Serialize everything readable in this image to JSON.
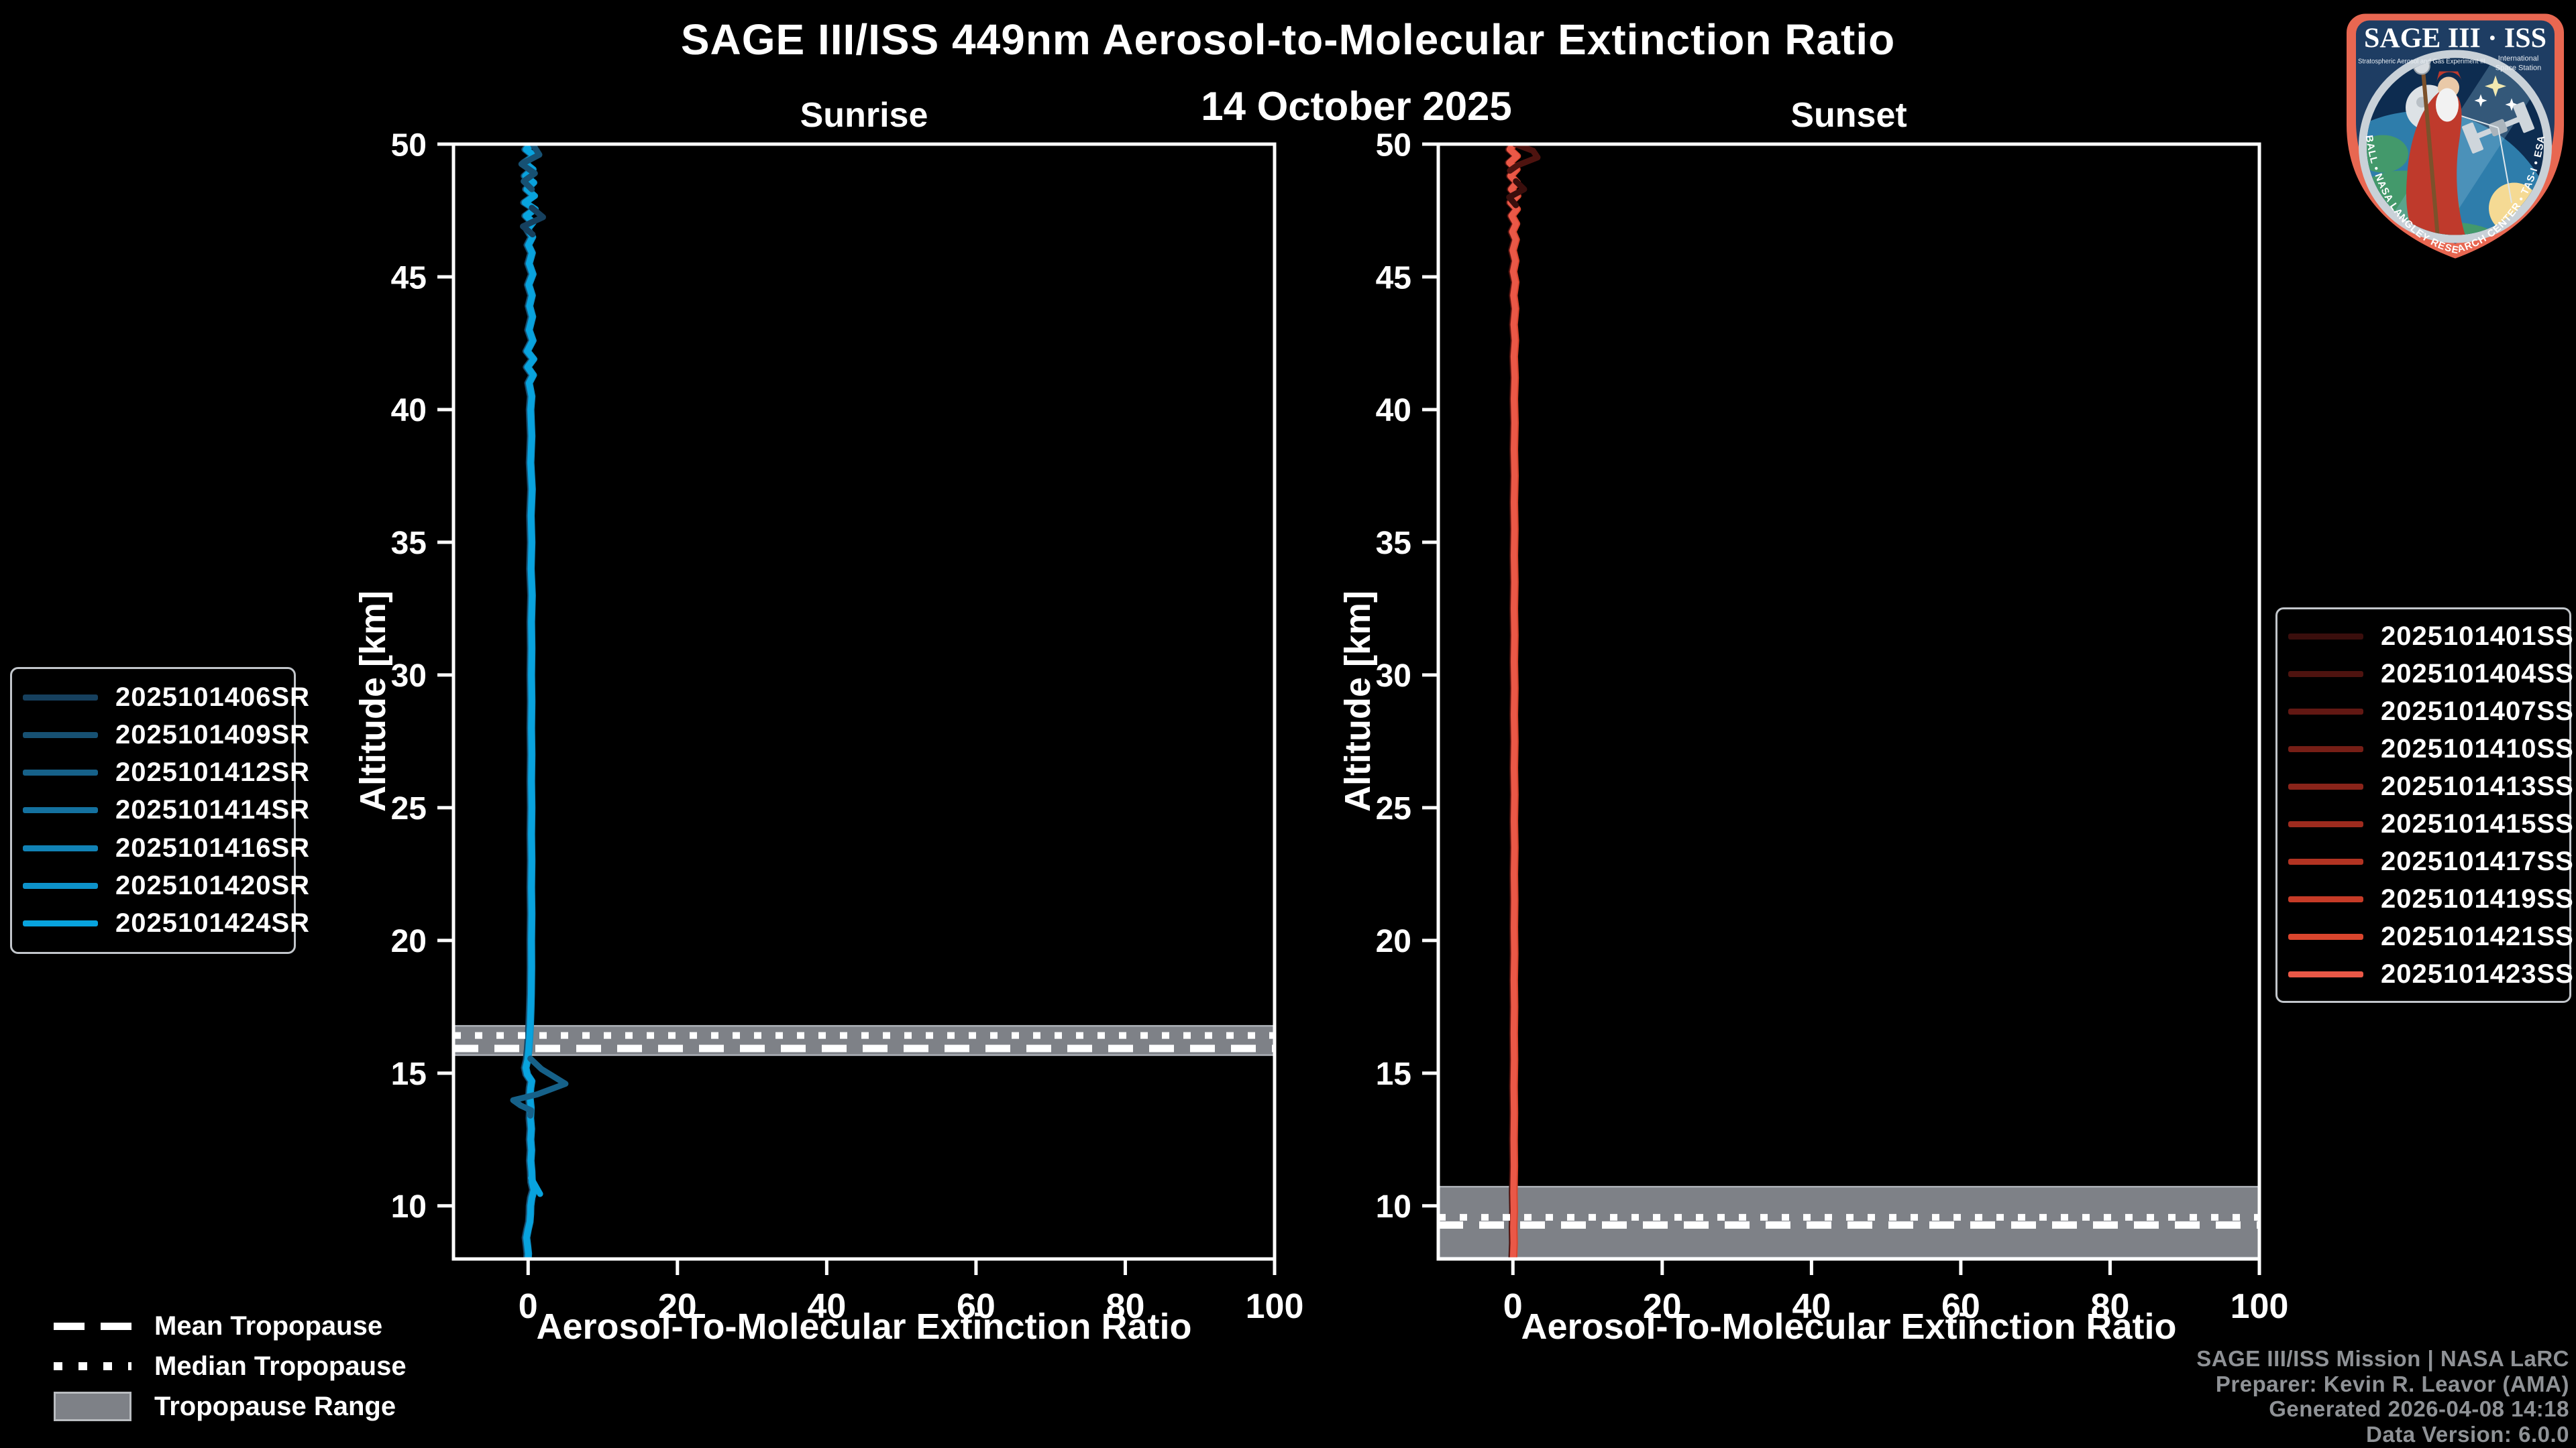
{
  "header": {
    "title": "SAGE III/ISS 449nm Aerosol-to-Molecular Extinction Ratio",
    "date": "14 October 2025"
  },
  "axes": {
    "xlim": [
      -10,
      100
    ],
    "ylim": [
      8,
      50
    ],
    "xticks": [
      0,
      20,
      40,
      60,
      80,
      100
    ],
    "yticks": [
      50,
      45,
      40,
      35,
      30,
      25,
      20,
      15,
      10
    ],
    "ylabel": "Altitude [km]"
  },
  "chart_data": [
    {
      "type": "line",
      "panel": "sunrise",
      "title": "Sunrise",
      "xlabel": "Aerosol-To-Molecular Extinction Ratio",
      "series": [
        {
          "label": "2025101406SR",
          "color": "#16405e",
          "offset": -0.22
        },
        {
          "label": "2025101409SR",
          "color": "#175173",
          "offset": -0.14
        },
        {
          "label": "2025101412SR",
          "color": "#166189",
          "offset": -0.07
        },
        {
          "label": "2025101414SR",
          "color": "#14719f",
          "offset": 0.0
        },
        {
          "label": "2025101416SR",
          "color": "#1182b5",
          "offset": 0.06
        },
        {
          "label": "2025101420SR",
          "color": "#0d92ca",
          "offset": 0.13
        },
        {
          "label": "2025101424SR",
          "color": "#08a3de",
          "offset": 0.0
        }
      ],
      "profile": [
        [
          50,
          0.4
        ],
        [
          49.8,
          -0.3
        ],
        [
          49.55,
          0.8
        ],
        [
          49.3,
          -0.5
        ],
        [
          49.05,
          0.6
        ],
        [
          48.8,
          -0.4
        ],
        [
          48.55,
          0.7
        ],
        [
          48.3,
          -0.2
        ],
        [
          48.05,
          0.8
        ],
        [
          47.8,
          -0.45
        ],
        [
          47.55,
          0.9
        ],
        [
          47.3,
          -0.3
        ],
        [
          47.05,
          0.6
        ],
        [
          46.8,
          -0.1
        ],
        [
          46.5,
          0.55
        ],
        [
          46.2,
          0.0
        ],
        [
          45.9,
          0.5
        ],
        [
          45.5,
          0.1
        ],
        [
          45.1,
          0.6
        ],
        [
          44.7,
          0.05
        ],
        [
          44.3,
          0.5
        ],
        [
          43.9,
          0.15
        ],
        [
          43.5,
          0.55
        ],
        [
          43.0,
          0.1
        ],
        [
          42.6,
          0.6
        ],
        [
          42.2,
          -0.15
        ],
        [
          41.9,
          0.7
        ],
        [
          41.6,
          -0.1
        ],
        [
          41.3,
          0.65
        ],
        [
          41.0,
          0.1
        ],
        [
          40.5,
          0.45
        ],
        [
          40.0,
          0.3
        ],
        [
          39.0,
          0.45
        ],
        [
          38.0,
          0.3
        ],
        [
          37.0,
          0.5
        ],
        [
          36.0,
          0.35
        ],
        [
          35.0,
          0.45
        ],
        [
          34.0,
          0.35
        ],
        [
          33.0,
          0.5
        ],
        [
          32.0,
          0.4
        ],
        [
          31.0,
          0.45
        ],
        [
          30.0,
          0.4
        ],
        [
          29.0,
          0.45
        ],
        [
          28.0,
          0.4
        ],
        [
          27.0,
          0.45
        ],
        [
          26.0,
          0.4
        ],
        [
          25.0,
          0.45
        ],
        [
          24.0,
          0.4
        ],
        [
          23.0,
          0.45
        ],
        [
          22.0,
          0.4
        ],
        [
          21.0,
          0.45
        ],
        [
          20.0,
          0.4
        ],
        [
          19.0,
          0.42
        ],
        [
          18.0,
          0.38
        ],
        [
          17.4,
          0.32
        ],
        [
          16.8,
          0.25
        ],
        [
          16.3,
          0.15
        ],
        [
          15.9,
          0.05
        ],
        [
          15.5,
          -0.1
        ],
        [
          15.2,
          -0.35
        ],
        [
          14.95,
          -0.15
        ],
        [
          14.7,
          0.45
        ],
        [
          14.45,
          0.3
        ],
        [
          14.1,
          0.2
        ],
        [
          13.7,
          0.35
        ],
        [
          13.3,
          0.28
        ],
        [
          12.9,
          0.4
        ],
        [
          12.5,
          0.3
        ],
        [
          12.1,
          0.42
        ],
        [
          11.7,
          0.32
        ],
        [
          11.3,
          0.45
        ],
        [
          10.9,
          0.5
        ],
        [
          10.6,
          0.75
        ],
        [
          10.3,
          0.45
        ],
        [
          10.0,
          0.3
        ],
        [
          9.7,
          0.28
        ],
        [
          9.4,
          0.2
        ],
        [
          9.1,
          -0.05
        ],
        [
          8.8,
          -0.25
        ],
        [
          8.5,
          -0.12
        ],
        [
          8.2,
          0.0
        ],
        [
          8.0,
          -0.05
        ]
      ],
      "anomalies": [
        {
          "series": 2,
          "points": [
            [
              15.55,
              0.3
            ],
            [
              15.15,
              1.8
            ],
            [
              14.6,
              5.0
            ],
            [
              14.2,
              1.2
            ],
            [
              13.98,
              -2.0
            ],
            [
              13.78,
              -1.0
            ],
            [
              13.6,
              0.4
            ],
            [
              13.4,
              0.3
            ]
          ]
        },
        {
          "series": 6,
          "points": [
            [
              11.05,
              0.4
            ],
            [
              10.75,
              1.0
            ],
            [
              10.45,
              1.6
            ]
          ]
        },
        {
          "series": 1,
          "points": [
            [
              50,
              0.6
            ],
            [
              49.6,
              1.5
            ],
            [
              49.25,
              -0.9
            ],
            [
              48.9,
              0.9
            ],
            [
              48.6,
              -0.6
            ],
            [
              48.3,
              0.5
            ]
          ]
        },
        {
          "series": 0,
          "points": [
            [
              47.6,
              0.5
            ],
            [
              47.25,
              2.0
            ],
            [
              46.9,
              -0.7
            ],
            [
              46.6,
              0.6
            ]
          ]
        }
      ],
      "tropopause": {
        "mean": 15.93,
        "median": 16.42,
        "range": [
          15.68,
          16.78
        ]
      }
    },
    {
      "type": "line",
      "panel": "sunset",
      "title": "Sunset",
      "xlabel": "Aerosol-To-Molecular Extinction Ratio",
      "series": [
        {
          "label": "2025101401SS",
          "color": "#3a0e0c",
          "offset": -0.2
        },
        {
          "label": "2025101404SS",
          "color": "#4e130f",
          "offset": -0.14
        },
        {
          "label": "2025101407SS",
          "color": "#621813",
          "offset": -0.09
        },
        {
          "label": "2025101410SS",
          "color": "#761e16",
          "offset": -0.04
        },
        {
          "label": "2025101413SS",
          "color": "#8a241a",
          "offset": 0.0
        },
        {
          "label": "2025101415SS",
          "color": "#9e2b1e",
          "offset": 0.04
        },
        {
          "label": "2025101417SS",
          "color": "#b23322",
          "offset": 0.09
        },
        {
          "label": "2025101419SS",
          "color": "#c63b27",
          "offset": 0.13
        },
        {
          "label": "2025101421SS",
          "color": "#d9452d",
          "offset": 0.18
        },
        {
          "label": "2025101423SS",
          "color": "#ea5847",
          "offset": 0.0
        }
      ],
      "profile": [
        [
          50,
          0.05
        ],
        [
          49.8,
          -0.45
        ],
        [
          49.55,
          0.5
        ],
        [
          49.3,
          -0.5
        ],
        [
          49.05,
          0.45
        ],
        [
          48.8,
          -0.35
        ],
        [
          48.55,
          0.5
        ],
        [
          48.3,
          -0.25
        ],
        [
          48.05,
          0.55
        ],
        [
          47.8,
          -0.35
        ],
        [
          47.55,
          0.5
        ],
        [
          47.3,
          -0.2
        ],
        [
          47.0,
          0.4
        ],
        [
          46.7,
          -0.1
        ],
        [
          46.4,
          0.35
        ],
        [
          46.0,
          -0.05
        ],
        [
          45.6,
          0.3
        ],
        [
          45.2,
          0.0
        ],
        [
          44.8,
          0.3
        ],
        [
          44.3,
          0.05
        ],
        [
          43.8,
          0.28
        ],
        [
          43.2,
          0.08
        ],
        [
          42.6,
          0.25
        ],
        [
          42.0,
          0.1
        ],
        [
          41.2,
          0.22
        ],
        [
          40.4,
          0.12
        ],
        [
          39.5,
          0.2
        ],
        [
          38.5,
          0.12
        ],
        [
          37.5,
          0.2
        ],
        [
          36.5,
          0.12
        ],
        [
          35.5,
          0.18
        ],
        [
          34.5,
          0.12
        ],
        [
          33.5,
          0.18
        ],
        [
          32.5,
          0.12
        ],
        [
          31.5,
          0.18
        ],
        [
          30.5,
          0.12
        ],
        [
          29.5,
          0.18
        ],
        [
          28.5,
          0.12
        ],
        [
          27.5,
          0.18
        ],
        [
          26.5,
          0.12
        ],
        [
          25.5,
          0.18
        ],
        [
          24.5,
          0.12
        ],
        [
          23.5,
          0.18
        ],
        [
          22.5,
          0.12
        ],
        [
          21.5,
          0.16
        ],
        [
          20.5,
          0.12
        ],
        [
          19.5,
          0.16
        ],
        [
          18.5,
          0.1
        ],
        [
          17.5,
          0.15
        ],
        [
          16.5,
          0.1
        ],
        [
          15.5,
          0.14
        ],
        [
          14.5,
          0.08
        ],
        [
          13.5,
          0.13
        ],
        [
          12.5,
          0.08
        ],
        [
          11.5,
          0.12
        ],
        [
          10.5,
          0.06
        ],
        [
          9.8,
          0.1
        ],
        [
          9.2,
          0.04
        ],
        [
          8.6,
          0.08
        ],
        [
          8.0,
          0.0
        ]
      ],
      "anomalies": [
        {
          "series": 1,
          "points": [
            [
              50,
              0.3
            ],
            [
              49.75,
              2.7
            ],
            [
              49.5,
              3.3
            ],
            [
              49.2,
              0.6
            ],
            [
              49.0,
              -0.4
            ]
          ]
        },
        {
          "series": 0,
          "points": [
            [
              48.6,
              0.4
            ],
            [
              48.3,
              1.5
            ],
            [
              48.0,
              -0.5
            ],
            [
              47.7,
              0.4
            ]
          ]
        }
      ],
      "tropopause": {
        "mean": 9.28,
        "median": 9.57,
        "range": [
          8.05,
          10.72
        ]
      }
    }
  ],
  "tropopause_legend": {
    "mean": "Mean Tropopause",
    "median": "Median Tropopause",
    "range": "Tropopause Range"
  },
  "credits": {
    "lines": [
      "SAGE III/ISS Mission | NASA LaRC",
      "Preparer: Kevin R. Leavor (AMA)",
      "Generated 2026-04-08 14:18",
      "Data Version: 6.0.0"
    ]
  },
  "logo": {
    "name": "SAGE III · ISS",
    "sub_left": "Stratospheric Aerosol and Gas Experiment III",
    "sub_right_1": "International",
    "sub_right_2": "Space Station",
    "bottom": "BALL • NASA LANGLEY RESEARCH CENTER • TAS-I • ESA"
  },
  "colors": {
    "background": "#000000",
    "axis": "#ffffff",
    "band": "#7e8187",
    "band_edge": "#aeb2b8",
    "tropopause_line": "#ffffff",
    "credits_text": "#8f9296",
    "legend_border": "#c2c6cb"
  }
}
